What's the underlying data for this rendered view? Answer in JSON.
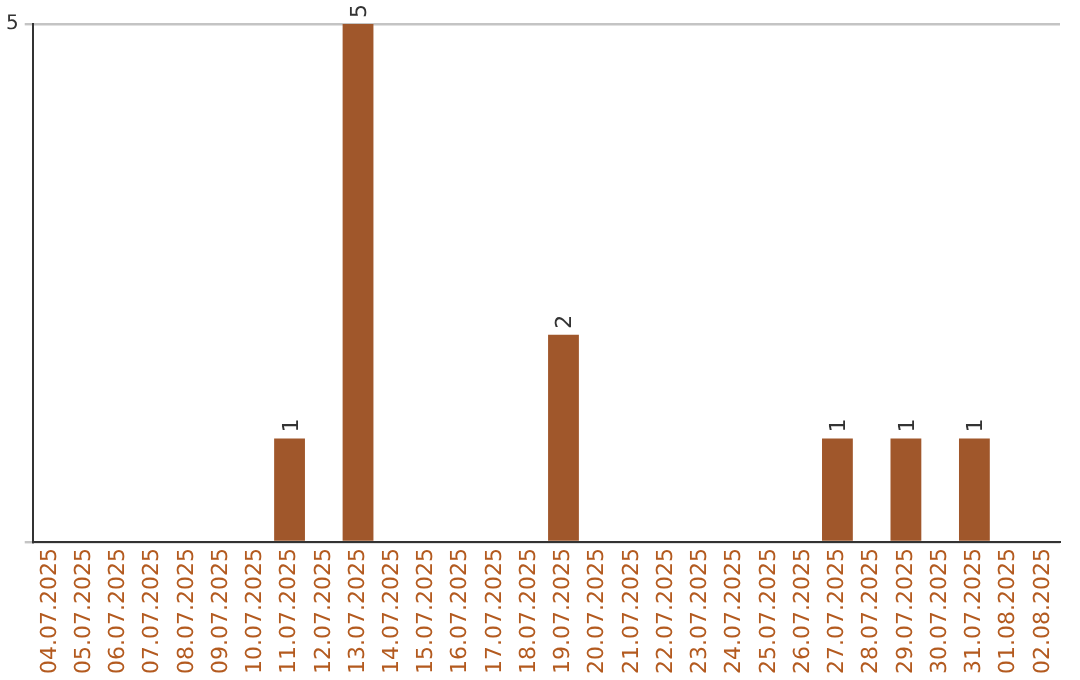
{
  "chart_data": {
    "type": "bar",
    "categories": [
      "04.07.2025",
      "05.07.2025",
      "06.07.2025",
      "07.07.2025",
      "08.07.2025",
      "09.07.2025",
      "10.07.2025",
      "11.07.2025",
      "12.07.2025",
      "13.07.2025",
      "14.07.2025",
      "15.07.2025",
      "16.07.2025",
      "17.07.2025",
      "18.07.2025",
      "19.07.2025",
      "20.07.2025",
      "21.07.2025",
      "22.07.2025",
      "23.07.2025",
      "24.07.2025",
      "25.07.2025",
      "26.07.2025",
      "27.07.2025",
      "28.07.2025",
      "29.07.2025",
      "30.07.2025",
      "31.07.2025",
      "01.08.2025",
      "02.08.2025"
    ],
    "values": [
      null,
      null,
      null,
      null,
      null,
      null,
      null,
      1,
      null,
      5,
      null,
      null,
      null,
      null,
      null,
      2,
      null,
      null,
      null,
      null,
      null,
      null,
      null,
      1,
      null,
      1,
      null,
      1,
      null,
      null
    ],
    "color": "#a0572b",
    "ylim": [
      0,
      5
    ],
    "yticks": [
      {
        "value": 0,
        "label": null
      },
      5
    ],
    "grid": "y",
    "data_labels": true,
    "legend": false
  }
}
